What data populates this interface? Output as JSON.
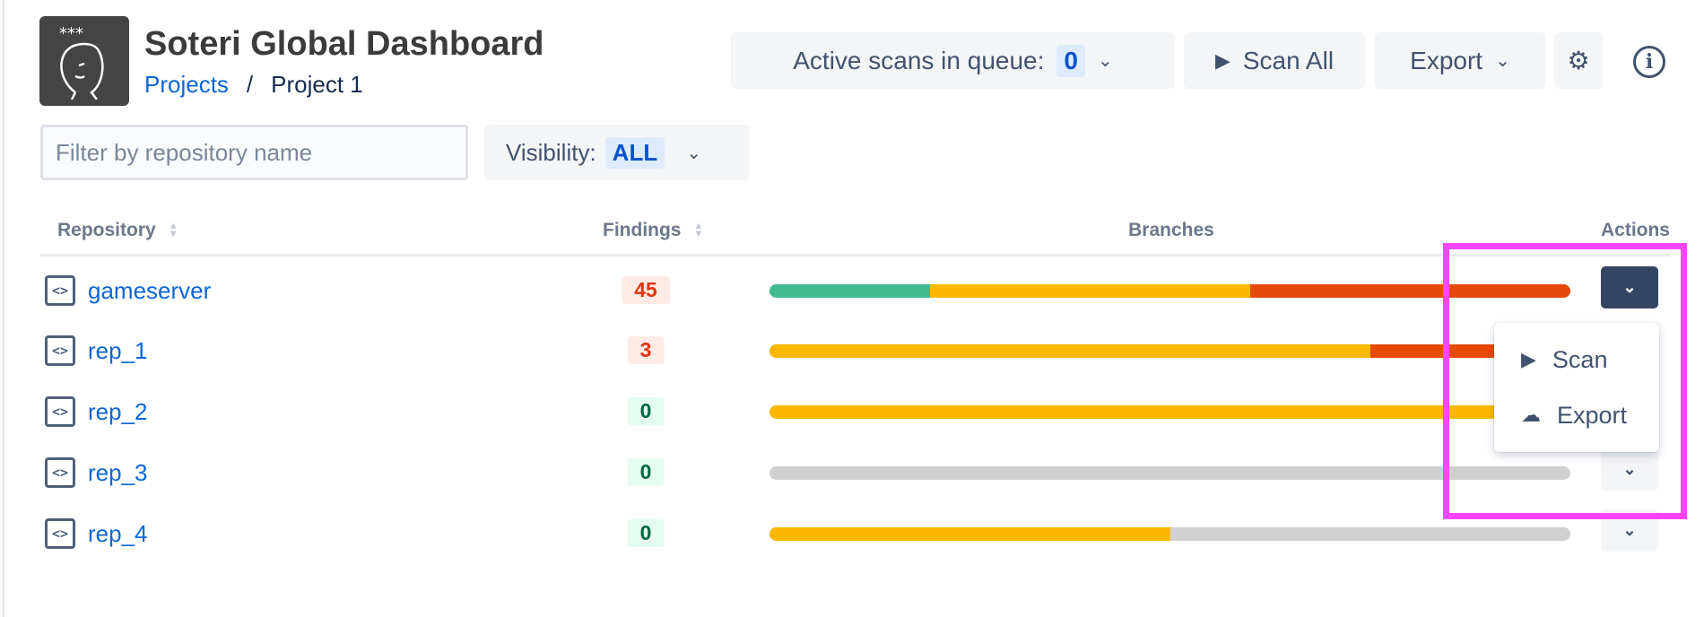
{
  "header": {
    "title": "Soteri Global Dashboard",
    "breadcrumb": [
      {
        "label": "Projects"
      },
      {
        "label": "/"
      },
      {
        "label": "Project 1"
      }
    ]
  },
  "toolbar": {
    "queue_label": "Active scans in queue:",
    "queue_count": "0",
    "scan_all": "Scan All",
    "export": "Export",
    "icons": [
      "play-icon",
      "chevron-down-icon",
      "gear-icon",
      "info-icon"
    ]
  },
  "filter": {
    "placeholder": "Filter by repository name",
    "value": ""
  },
  "visibility": {
    "label": "Visibility:",
    "value": "ALL"
  },
  "table": {
    "columns": [
      "Repository",
      "Findings",
      "Branches",
      "Actions"
    ],
    "colors": {
      "green": "#3fbc8e",
      "yellow": "#fbb800",
      "red": "#e64a0b",
      "gray": "#d0d0d0"
    },
    "rows": [
      {
        "name": "gameserver",
        "findings": "45",
        "severity": "red",
        "branches": [
          {
            "color": "green",
            "pct": 20
          },
          {
            "color": "yellow",
            "pct": 40
          },
          {
            "color": "red",
            "pct": 40
          }
        ]
      },
      {
        "name": "rep_1",
        "findings": "3",
        "severity": "red",
        "branches": [
          {
            "color": "yellow",
            "pct": 75
          },
          {
            "color": "red",
            "pct": 25
          }
        ]
      },
      {
        "name": "rep_2",
        "findings": "0",
        "severity": "green",
        "branches": [
          {
            "color": "yellow",
            "pct": 100
          }
        ]
      },
      {
        "name": "rep_3",
        "findings": "0",
        "severity": "green",
        "branches": [
          {
            "color": "gray",
            "pct": 100
          }
        ]
      },
      {
        "name": "rep_4",
        "findings": "0",
        "severity": "green",
        "branches": [
          {
            "color": "yellow",
            "pct": 50
          },
          {
            "color": "gray",
            "pct": 50
          }
        ]
      }
    ]
  },
  "action_menu": {
    "items": [
      {
        "label": "Scan",
        "icon": "play-icon"
      },
      {
        "label": "Export",
        "icon": "cloud-download-icon"
      }
    ]
  },
  "highlight_color": "#ff44ff"
}
